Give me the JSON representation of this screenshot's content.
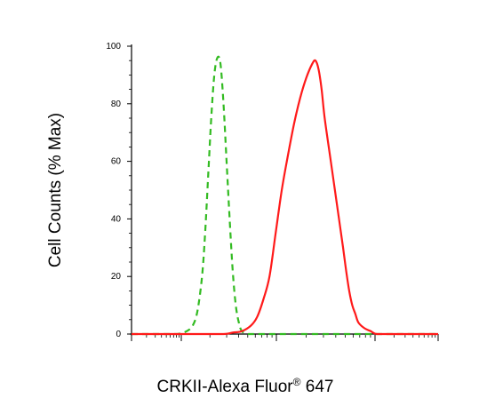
{
  "chart_data": {
    "type": "line",
    "title": "",
    "xlabel": {
      "main": "CRKII-Alexa Fluor",
      "superscript": "®",
      "suffix": " 647"
    },
    "ylabel": "Cell Counts (% Max)",
    "x_scale": "log",
    "xlim": [
      0,
      100
    ],
    "ylim": [
      0,
      100
    ],
    "y_ticks": [
      "0",
      "20",
      "40",
      "60",
      "80",
      "100"
    ],
    "x_tick_labels_shown": false,
    "grid": false,
    "legend": "none",
    "series": [
      {
        "color": "#33bb22",
        "style": "dashed",
        "x": [
          0,
          5,
          10,
          15,
          18,
          20,
          21.5,
          23,
          24,
          25,
          26,
          27,
          28,
          29,
          30,
          31,
          32,
          33,
          34,
          35,
          36,
          38,
          40,
          45,
          50,
          60,
          70,
          80,
          90,
          100
        ],
        "y": [
          0,
          0,
          0,
          0,
          1,
          3,
          8,
          20,
          35,
          55,
          75,
          90,
          96,
          94,
          80,
          60,
          40,
          22,
          10,
          4,
          1,
          0,
          0,
          0,
          0,
          0,
          0,
          0,
          0,
          0
        ]
      },
      {
        "color": "#ff1a1a",
        "style": "solid",
        "x": [
          0,
          10,
          20,
          30,
          33,
          36,
          39,
          41,
          43,
          45,
          47,
          49,
          51,
          53,
          55,
          57,
          59,
          60,
          61,
          62,
          63,
          65,
          67,
          69,
          70,
          71,
          72,
          73,
          74,
          76,
          78,
          80,
          85,
          90,
          95,
          100
        ],
        "y": [
          0,
          0,
          0,
          0,
          0.5,
          1,
          3,
          6,
          12,
          20,
          35,
          50,
          62,
          73,
          82,
          89,
          94,
          95,
          92,
          85,
          75,
          60,
          45,
          30,
          22,
          15,
          10,
          7,
          4,
          2,
          1,
          0,
          0,
          0,
          0,
          0
        ]
      }
    ]
  }
}
